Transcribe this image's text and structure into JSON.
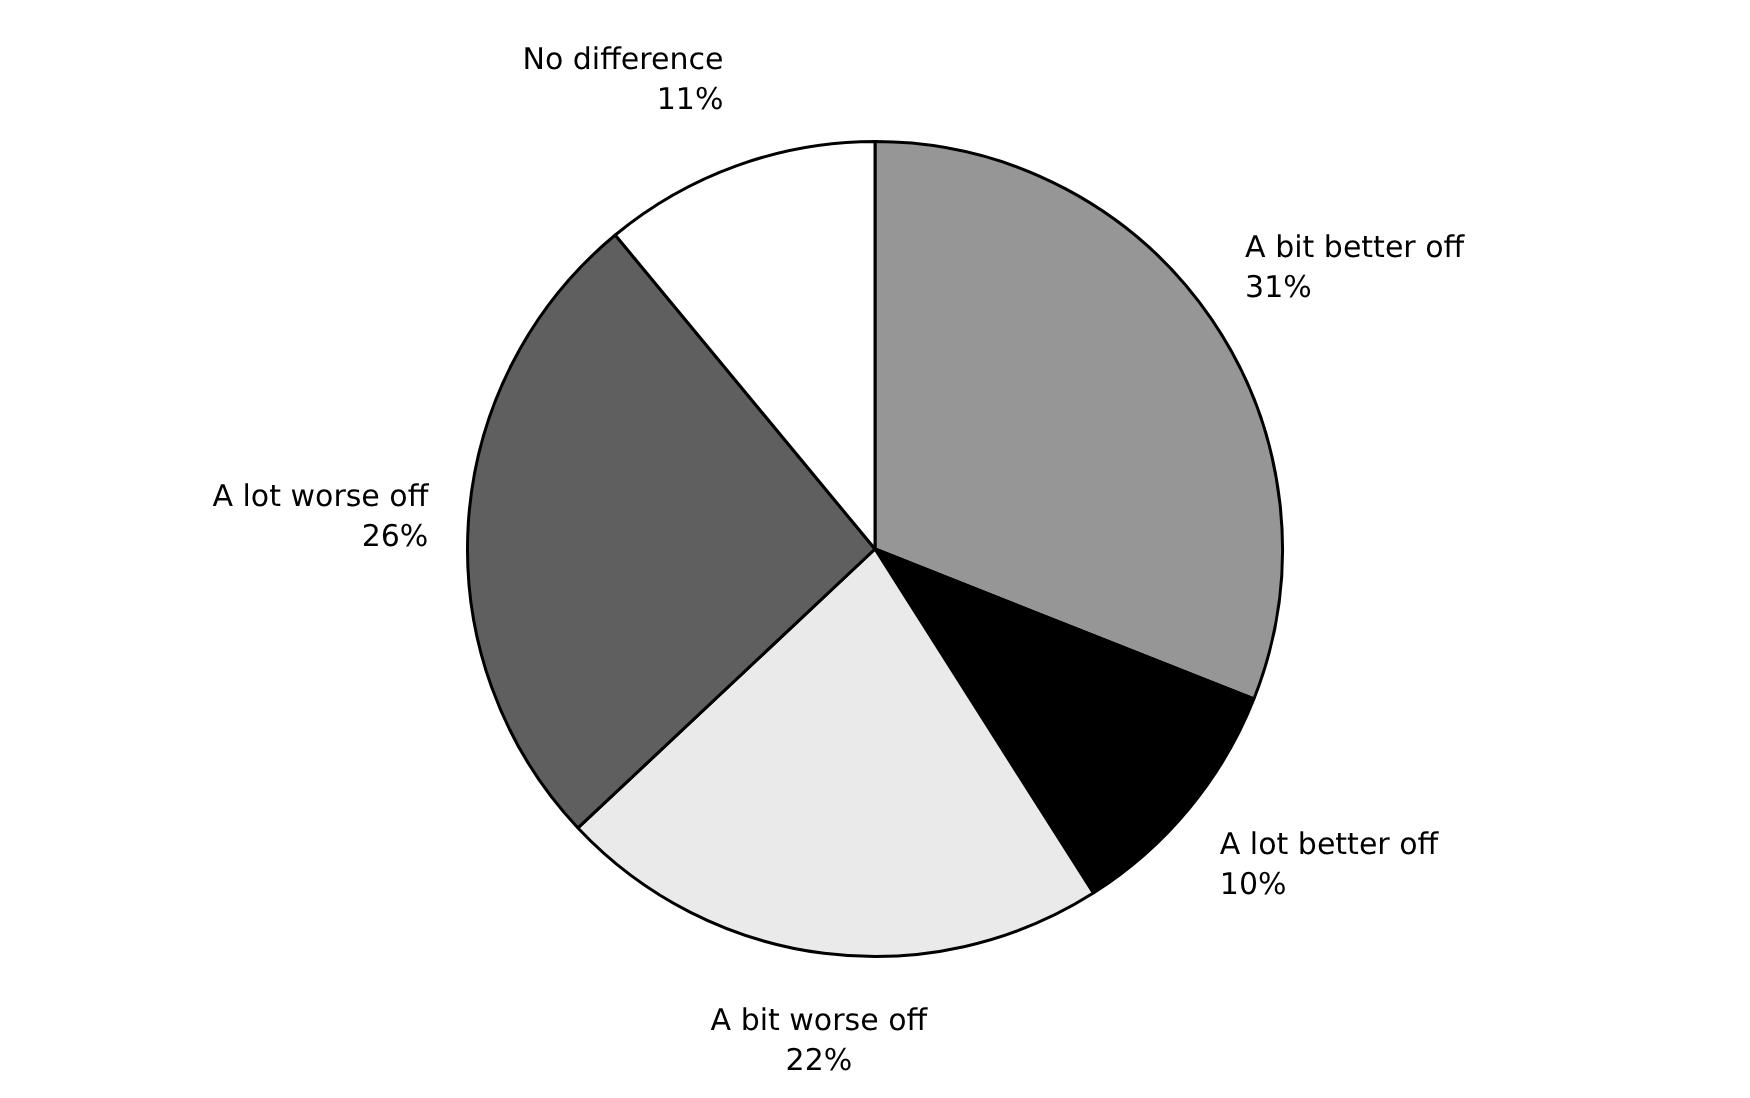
{
  "chart_data": {
    "type": "pie",
    "categories": [
      "A bit better off",
      "A lot better off",
      "A bit worse off",
      "A lot worse off",
      "No difference"
    ],
    "values": [
      31,
      10,
      22,
      26,
      11
    ],
    "value_labels": [
      "31%",
      "10%",
      "22%",
      "26%",
      "11%"
    ],
    "colors": [
      "#969696",
      "#000000",
      "#eaeaea",
      "#5f5f5f",
      "#ffffff"
    ],
    "legend": false
  }
}
